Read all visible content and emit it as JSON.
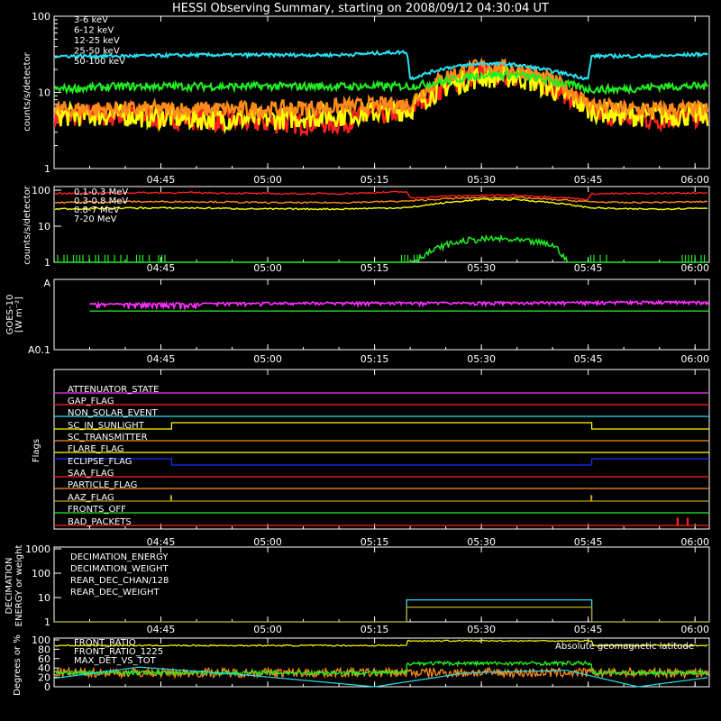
{
  "title": "HESSI Observing Summary, starting on 2008/09/12 04:30:04 UT",
  "x_range_minutes": [
    0,
    92
  ],
  "time_ticks": [
    {
      "label": "04:45",
      "min": 15
    },
    {
      "label": "05:00",
      "min": 30
    },
    {
      "label": "05:15",
      "min": 45
    },
    {
      "label": "05:30",
      "min": 60
    },
    {
      "label": "05:45",
      "min": 75
    },
    {
      "label": "06:00",
      "min": 90
    }
  ],
  "colors": {
    "red": "#ff2020",
    "orange": "#ff8c1a",
    "yellow": "#ffff00",
    "green": "#22ee22",
    "cyan": "#28e0f0",
    "magenta": "#ff30ff",
    "blue": "#1530ff",
    "olive": "#b8a020",
    "white": "#ffffff"
  },
  "panels": {
    "lc1": {
      "ylabel": "counts/s/detector",
      "yticks": [
        "100",
        "10",
        "1"
      ],
      "legend": [
        {
          "name": "3-6 keV",
          "color": "#ff2020"
        },
        {
          "name": "6-12 keV",
          "color": "#ff8c1a"
        },
        {
          "name": "12-25 keV",
          "color": "#ffff00"
        },
        {
          "name": "25-50 keV",
          "color": "#22ee22"
        },
        {
          "name": "50-100 keV",
          "color": "#28e0f0"
        }
      ]
    },
    "lc2": {
      "ylabel": "counts/s/detector",
      "yticks": [
        "100",
        "10",
        "1"
      ],
      "legend": [
        {
          "name": "0.1-0.3 MeV",
          "color": "#ff2020"
        },
        {
          "name": "0.3-0.8 MeV",
          "color": "#ff8c1a"
        },
        {
          "name": "0.8-7 MeV",
          "color": "#ffff00"
        },
        {
          "name": "7-20 MeV",
          "color": "#22ee22"
        }
      ]
    },
    "goes": {
      "ylabel_1": "GOES-10",
      "ylabel_2": "[W m⁻²]",
      "yticks": [
        "A",
        "A0.1"
      ]
    },
    "flags": {
      "ylabel": "Flags",
      "items": [
        {
          "name": "ATTENUATOR_STATE",
          "color": "#ff30ff"
        },
        {
          "name": "GAP_FLAG",
          "color": "#ff2020"
        },
        {
          "name": "NON_SOLAR_EVENT",
          "color": "#28e0f0"
        },
        {
          "name": "SC_IN_SUNLIGHT",
          "color": "#ffff00"
        },
        {
          "name": "SC_TRANSMITTER",
          "color": "#ff8c1a"
        },
        {
          "name": "FLARE_FLAG",
          "color": "#ffff00"
        },
        {
          "name": "ECLIPSE_FLAG",
          "color": "#1530ff"
        },
        {
          "name": "SAA_FLAG",
          "color": "#ff2020"
        },
        {
          "name": "PARTICLE_FLAG",
          "color": "#ff8c1a"
        },
        {
          "name": "AAZ_FLAG",
          "color": "#b8a020"
        },
        {
          "name": "FRONTS_OFF",
          "color": "#22ee22"
        },
        {
          "name": "BAD_PACKETS",
          "color": "#ff2020"
        }
      ]
    },
    "dec": {
      "ylabel_1": "DECIMATION",
      "ylabel_2": "ENERGY or weight",
      "yticks": [
        "1000",
        "100",
        "10",
        "1"
      ],
      "legend": [
        {
          "name": "DECIMATION_ENERGY",
          "color": "#22ee22"
        },
        {
          "name": "DECIMATION_WEIGHT",
          "color": "#ff8c1a"
        },
        {
          "name": "REAR_DEC_CHAN/128",
          "color": "#28e0f0"
        },
        {
          "name": "REAR_DEC_WEIGHT",
          "color": "#b8a020"
        }
      ]
    },
    "bottom": {
      "ylabel": "Degrees or %",
      "yticks": [
        "100",
        "80",
        "60",
        "40",
        "20",
        "0"
      ],
      "legend": [
        {
          "name": "FRONT_RATIO",
          "color": "#ffff00"
        },
        {
          "name": "FRONT_RATIO_1225",
          "color": "#22ee22"
        },
        {
          "name": "MAX_DET_VS_TOT",
          "color": "#ff8c1a"
        }
      ],
      "right_legend": {
        "name": "Absolute geomagnetic latitude",
        "color": "#28e0f0"
      }
    }
  },
  "chart_data": [
    {
      "type": "line",
      "title": "HESSI Observing Summary, starting on 2008/09/12 04:30:04 UT",
      "panel": "lc1",
      "ylabel": "counts/s/detector",
      "yscale": "log",
      "ylim": [
        1,
        100
      ],
      "x_unit": "minutes after 04:30:04 UT",
      "series": [
        {
          "name": "3-6 keV",
          "x": [
            0,
            10,
            20,
            30,
            40,
            50,
            55,
            60,
            65,
            70,
            75,
            80,
            85,
            92
          ],
          "values": [
            5,
            5,
            4.5,
            4,
            4,
            6,
            12,
            18,
            17,
            12,
            6,
            4.5,
            4.5,
            5
          ]
        },
        {
          "name": "6-12 keV",
          "x": [
            0,
            10,
            20,
            30,
            40,
            50,
            55,
            60,
            65,
            70,
            75,
            80,
            85,
            92
          ],
          "values": [
            6,
            6,
            6,
            6,
            6.5,
            7,
            16,
            22,
            20,
            14,
            7,
            6,
            6,
            6
          ]
        },
        {
          "name": "12-25 keV",
          "x": [
            0,
            10,
            20,
            30,
            40,
            50,
            55,
            60,
            65,
            70,
            75,
            80,
            85,
            92
          ],
          "values": [
            5,
            5,
            4.5,
            4.5,
            5,
            6,
            12,
            16,
            16,
            11,
            6,
            5,
            5,
            5
          ]
        },
        {
          "name": "25-50 keV",
          "x": [
            0,
            10,
            20,
            30,
            40,
            50,
            55,
            60,
            65,
            70,
            75,
            80,
            85,
            92
          ],
          "values": [
            11,
            12,
            12,
            12,
            12,
            12,
            14,
            17,
            17,
            14,
            11,
            11,
            12,
            12
          ]
        },
        {
          "name": "50-100 keV",
          "x": [
            0,
            10,
            20,
            30,
            40,
            49.5,
            50,
            55,
            60,
            65,
            70,
            75,
            75.5,
            80,
            85,
            92
          ],
          "values": [
            30,
            30,
            31,
            31,
            31,
            34,
            15,
            21,
            24,
            23,
            19,
            15,
            30,
            30,
            30,
            32
          ]
        }
      ]
    },
    {
      "type": "line",
      "panel": "lc2",
      "ylabel": "counts/s/detector",
      "yscale": "log",
      "ylim": [
        1,
        100
      ],
      "x_unit": "minutes after 04:30:04 UT",
      "series": [
        {
          "name": "0.1-0.3 MeV",
          "x": [
            0,
            10,
            20,
            30,
            40,
            49.5,
            50,
            55,
            60,
            65,
            70,
            75,
            75.5,
            80,
            85,
            92
          ],
          "values": [
            80,
            85,
            85,
            80,
            80,
            90,
            60,
            68,
            72,
            72,
            65,
            55,
            80,
            80,
            82,
            85
          ]
        },
        {
          "name": "0.3-0.8 MeV",
          "x": [
            0,
            10,
            20,
            30,
            40,
            50,
            55,
            60,
            65,
            70,
            75,
            80,
            85,
            92
          ],
          "values": [
            45,
            48,
            48,
            45,
            45,
            50,
            58,
            62,
            62,
            55,
            48,
            45,
            46,
            48
          ]
        },
        {
          "name": "0.8-7 MeV",
          "x": [
            0,
            10,
            20,
            30,
            40,
            50,
            55,
            60,
            65,
            70,
            75,
            80,
            85,
            92
          ],
          "values": [
            30,
            32,
            32,
            30,
            30,
            33,
            45,
            55,
            55,
            45,
            33,
            30,
            30,
            32
          ]
        },
        {
          "name": "7-20 MeV",
          "x": [
            0,
            15,
            30,
            45,
            50,
            51,
            53,
            55,
            58,
            62,
            65,
            68,
            70,
            72,
            92
          ],
          "values": [
            1,
            1,
            1,
            1,
            1,
            1.2,
            2,
            3,
            4,
            4.5,
            4,
            3.5,
            3,
            1,
            1
          ]
        }
      ]
    },
    {
      "type": "line",
      "panel": "goes",
      "ylabel": "GOES-10 [W m⁻²]",
      "series": [
        {
          "name": "GOES-10 long",
          "x": [
            5,
            20,
            40,
            60,
            80,
            92
          ],
          "values": [
            0.65,
            0.66,
            0.67,
            0.67,
            0.68,
            0.68
          ]
        },
        {
          "name": "GOES-10 short",
          "x": [
            5,
            92
          ],
          "values": [
            0.55,
            0.55
          ]
        }
      ]
    },
    {
      "type": "line",
      "panel": "dec",
      "yscale": "log",
      "ylim": [
        1,
        1000
      ],
      "series": [
        {
          "name": "REAR_DEC_CHAN/128",
          "x": [
            0,
            49.5,
            49.5,
            75.5,
            75.5,
            92
          ],
          "values": [
            1,
            1,
            8,
            8,
            1,
            1
          ]
        },
        {
          "name": "REAR_DEC_WEIGHT",
          "x": [
            0,
            49.5,
            49.5,
            75.5,
            75.5,
            92
          ],
          "values": [
            1,
            1,
            4,
            4,
            1,
            1
          ]
        }
      ]
    },
    {
      "type": "line",
      "panel": "bottom",
      "ylabel": "Degrees or %",
      "ylim": [
        0,
        100
      ],
      "series": [
        {
          "name": "FRONT_RATIO_1225",
          "x": [
            0,
            49.5,
            49.5,
            75.5,
            75.5,
            92
          ],
          "values": [
            88,
            88,
            98,
            98,
            88,
            88
          ]
        },
        {
          "name": "FRONT_RATIO",
          "x": [
            0,
            49.5,
            49.5,
            75.5,
            75.5,
            92
          ],
          "values": [
            30,
            30,
            50,
            50,
            30,
            30
          ]
        },
        {
          "name": "MAX_DET_VS_TOT",
          "x": [
            0,
            92
          ],
          "values": [
            30,
            30
          ]
        },
        {
          "name": "Absolute geomagnetic latitude",
          "x": [
            0,
            12,
            27,
            45,
            58,
            72,
            82,
            92
          ],
          "values": [
            18,
            42,
            25,
            0,
            30,
            35,
            0,
            20
          ]
        }
      ]
    }
  ]
}
